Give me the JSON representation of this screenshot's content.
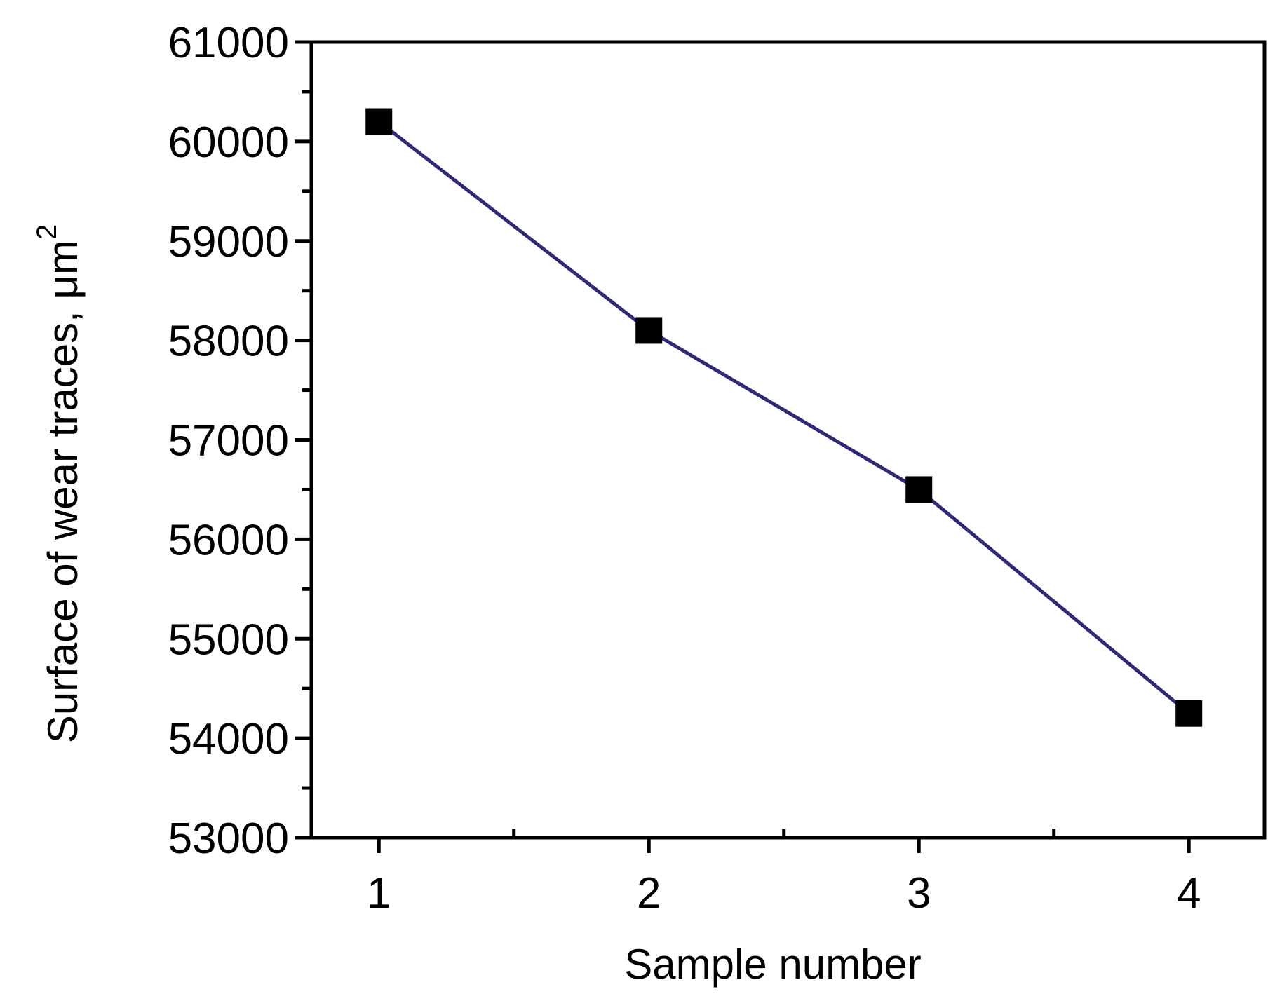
{
  "chart_data": {
    "type": "line",
    "title": "",
    "xlabel": "Sample number",
    "ylabel": "Surface of wear traces, μm",
    "ylabel_superscript": "2",
    "x": [
      1,
      2,
      3,
      4
    ],
    "xticks": [
      "1",
      "2",
      "3",
      "4"
    ],
    "xlim": [
      0.75,
      4.28
    ],
    "ylim": [
      53000,
      61000
    ],
    "yticks": [
      "53000",
      "54000",
      "55000",
      "56000",
      "57000",
      "58000",
      "59000",
      "60000",
      "61000"
    ],
    "series": [
      {
        "values": [
          60200,
          58100,
          56500,
          54250
        ],
        "color": "#2e2a7a",
        "marker": "square"
      }
    ],
    "grid": false,
    "legend": "none"
  }
}
